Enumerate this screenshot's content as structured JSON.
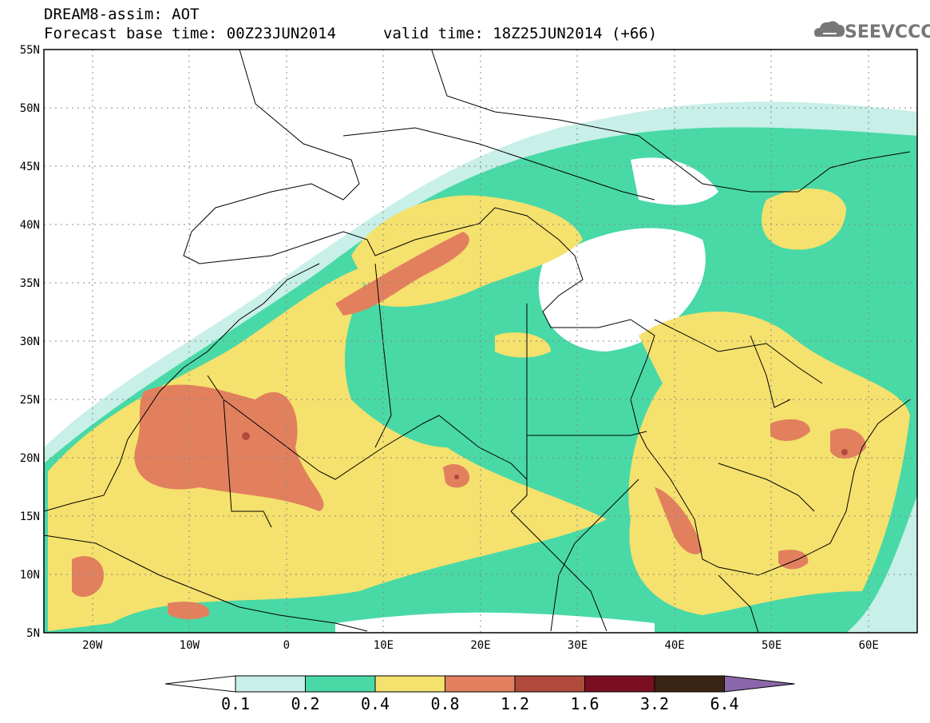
{
  "header": {
    "title": "DREAM8-assim: AOT",
    "base_time": "Forecast base time: 00Z23JUN2014",
    "valid_time": "valid time: 18Z25JUN2014 (+66)",
    "logo_text": "SEEVCCC"
  },
  "map": {
    "lon_range": [
      -25,
      65
    ],
    "lat_range": [
      5,
      55
    ],
    "lat_ticks": [
      "5N",
      "10N",
      "15N",
      "20N",
      "25N",
      "30N",
      "35N",
      "40N",
      "45N",
      "50N",
      "55N"
    ],
    "lon_ticks": [
      "20W",
      "10W",
      "0",
      "10E",
      "20E",
      "30E",
      "40E",
      "50E",
      "60E"
    ],
    "grid": true,
    "variable": "Aerosol optical thickness"
  },
  "colorbar": {
    "levels": [
      "0.1",
      "0.2",
      "0.4",
      "0.8",
      "1.2",
      "1.6",
      "3.2",
      "6.4"
    ],
    "colors": [
      "#ffffff",
      "#c8efe8",
      "#49d9a6",
      "#f5e16d",
      "#e2805e",
      "#b04a3c",
      "#7a0f22",
      "#3a2414",
      "#8c66aa"
    ]
  },
  "colors": {
    "clear": "#ffffff",
    "light": "#c8efe8",
    "green": "#49d9a6",
    "yellow": "#f5e16d",
    "orange": "#e2805e",
    "brown": "#b04a3c"
  }
}
